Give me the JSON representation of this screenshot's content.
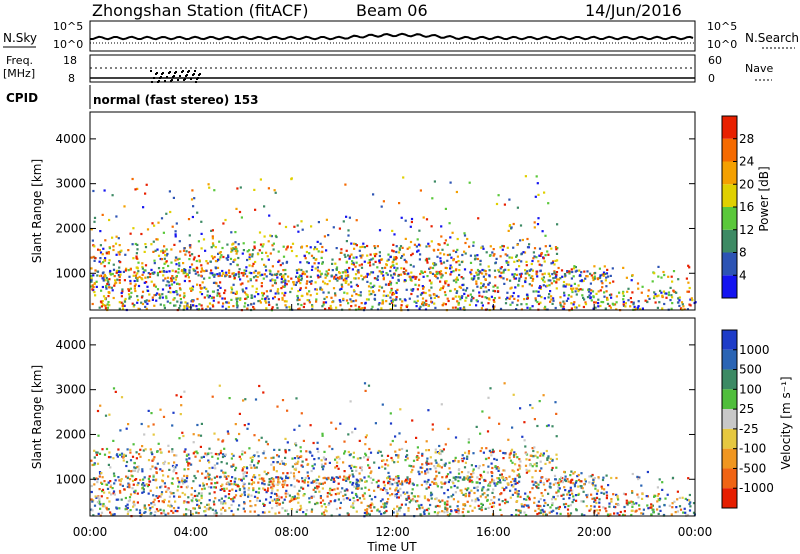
{
  "header": {
    "station": "Zhongshan Station (fitACF)",
    "beam": "Beam 06",
    "date": "14/Jun/2016"
  },
  "status_panels": {
    "nsky_label": "N.Sky",
    "nsky_ticks": [
      "10^5",
      "10^0"
    ],
    "nsearch_label": "N.Search",
    "nsearch_ticks": [
      "10^5",
      "10^0"
    ],
    "freq_label": "Freq.",
    "freq_unit": "[MHz]",
    "freq_ticks": [
      "18",
      "8"
    ],
    "nave_label": "Nave",
    "nave_ticks": [
      "60",
      "0"
    ],
    "cpid_label": "CPID",
    "cpid_text": "normal (fast stereo) 153"
  },
  "chart_data": [
    {
      "type": "heatmap",
      "name": "power",
      "xlabel": "",
      "ylabel": "Slant Range [km]",
      "xlim": [
        0,
        24
      ],
      "ylim": [
        180,
        4600
      ],
      "yticks": [
        "1000",
        "2000",
        "3000",
        "4000"
      ],
      "colorbar_label": "Power [dB]",
      "colorbar_ticks": [
        "4",
        "8",
        "12",
        "16",
        "20",
        "24",
        "28"
      ],
      "colorbar_colors": [
        "#1414f0",
        "#2d54b4",
        "#3d8a64",
        "#5ac83a",
        "#e0d000",
        "#f4a000",
        "#f56a00",
        "#e82000"
      ],
      "colorbar_range": [
        0,
        32
      ]
    },
    {
      "type": "heatmap",
      "name": "velocity",
      "xlabel": "Time UT",
      "ylabel": "Slant Range [km]",
      "xlim": [
        0,
        24
      ],
      "ylim": [
        180,
        4600
      ],
      "xticks": [
        "00:00",
        "04:00",
        "08:00",
        "12:00",
        "16:00",
        "20:00",
        "00:00"
      ],
      "yticks": [
        "1000",
        "2000",
        "3000",
        "4000"
      ],
      "colorbar_label": "Velocity [m s⁻¹]",
      "colorbar_ticks": [
        "1000",
        "500",
        "100",
        "25",
        "-25",
        "-100",
        "-500",
        "-1000"
      ],
      "colorbar_colors": [
        "#1e3cc8",
        "#2a64b4",
        "#3c8a64",
        "#50be3c",
        "#c8c8c8",
        "#e6c840",
        "#f09620",
        "#f06414",
        "#e61e00"
      ]
    }
  ]
}
